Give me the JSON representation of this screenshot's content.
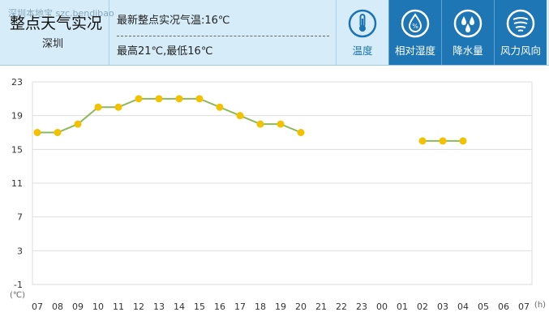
{
  "header": {
    "title": "整点天气实况",
    "watermark": "深圳本地宝 szc.bendibao",
    "city": "深圳",
    "latest_temp": "最新整点实况气温:16℃",
    "high_low": "最高21℃,最低16℃"
  },
  "tabs": [
    {
      "label": "温度",
      "icon": "thermometer-icon",
      "active": true
    },
    {
      "label": "相对湿度",
      "icon": "humidity-icon",
      "active": false
    },
    {
      "label": "降水量",
      "icon": "rain-drops-icon",
      "active": false
    },
    {
      "label": "风力风向",
      "icon": "wind-icon",
      "active": false
    }
  ],
  "colors": {
    "line": "#8db85a",
    "point": "#f2c200",
    "grid": "#dddddd",
    "active_tab_accent": "#1a73b5",
    "inactive_tab_bg": "#1e76b4"
  },
  "chart_data": {
    "type": "line",
    "title": "整点天气实况",
    "ylabel": "(℃)",
    "xlabel": "(h)",
    "ylim": [
      -1,
      23
    ],
    "yticks": [
      -1,
      3,
      7,
      11,
      15,
      19,
      23
    ],
    "categories": [
      "07",
      "08",
      "09",
      "10",
      "11",
      "12",
      "13",
      "14",
      "15",
      "16",
      "17",
      "18",
      "19",
      "20",
      "21",
      "22",
      "23",
      "00",
      "01",
      "02",
      "03",
      "04",
      "05",
      "06",
      "07"
    ],
    "series": [
      {
        "name": "温度",
        "values": [
          17,
          17,
          18,
          20,
          20,
          21,
          21,
          21,
          21,
          20,
          19,
          18,
          18,
          17,
          null,
          null,
          null,
          null,
          null,
          16,
          16,
          16,
          null,
          null,
          null
        ]
      }
    ]
  }
}
